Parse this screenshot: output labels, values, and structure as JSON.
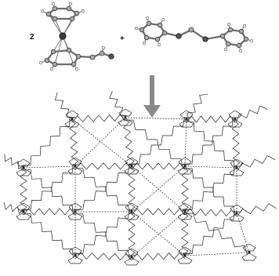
{
  "reaction": {
    "coefficient": "2",
    "plus_sign": "+"
  },
  "colors": {
    "arrow": "#8a8a8a",
    "bond": "#6a6a6a",
    "network": "#222222"
  },
  "icons": {
    "reactant_1": "ferrocene-molecule-icon",
    "reactant_2": "bipyridyl-ethylene-molecule-icon",
    "arrow": "down-arrow-icon",
    "product": "supramolecular-network-lattice-icon"
  }
}
